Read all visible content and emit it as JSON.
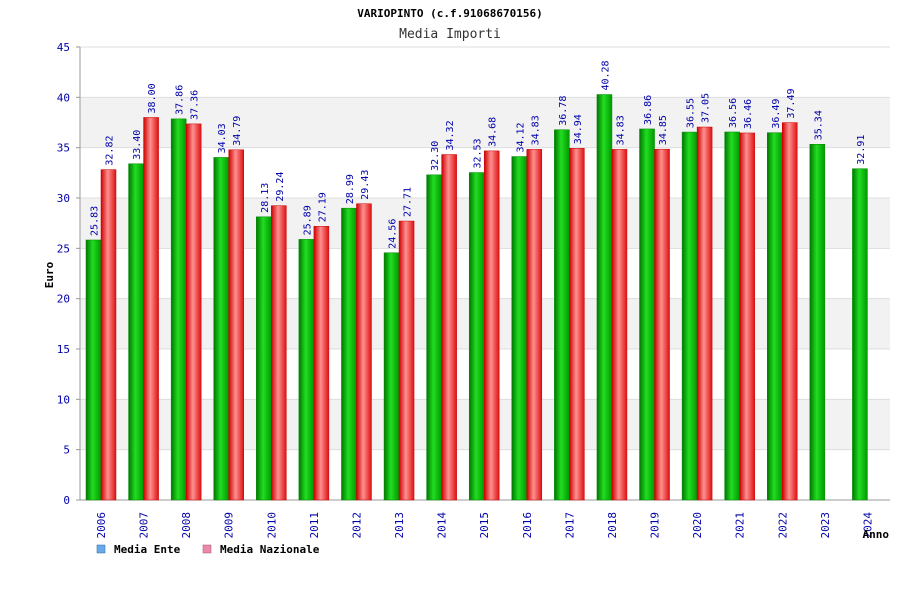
{
  "chart_data": {
    "type": "bar",
    "title": "VARIOPINTO (c.f.91068670156)",
    "subtitle": "Media Importi",
    "ylabel": "Euro",
    "xlabel": "Anno",
    "ylim": [
      0,
      45
    ],
    "yticks": [
      0,
      5,
      10,
      15,
      20,
      25,
      30,
      35,
      40,
      45
    ],
    "categories": [
      "2006",
      "2007",
      "2008",
      "2009",
      "2010",
      "2011",
      "2012",
      "2013",
      "2014",
      "2015",
      "2016",
      "2017",
      "2018",
      "2019",
      "2020",
      "2021",
      "2022",
      "2023",
      "2024"
    ],
    "series": [
      {
        "name": "Media Ente",
        "value_labels": [
          "25.83",
          "33.40",
          "37.86",
          "34.03",
          "28.13",
          "25.89",
          "28.99",
          "24.56",
          "32.30",
          "32.53",
          "34.12",
          "36.78",
          "40.28",
          "36.86",
          "36.55",
          "36.56",
          "36.49",
          "35.34",
          "32.91"
        ],
        "values": [
          25.83,
          33.4,
          37.86,
          34.03,
          28.13,
          25.89,
          28.99,
          24.56,
          32.3,
          32.53,
          34.12,
          36.78,
          40.28,
          36.86,
          36.55,
          36.56,
          36.49,
          35.34,
          32.91
        ]
      },
      {
        "name": "Media Nazionale",
        "value_labels": [
          "32.82",
          "38.00",
          "37.36",
          "34.79",
          "29.24",
          "27.19",
          "29.43",
          "27.71",
          "34.32",
          "34.68",
          "34.83",
          "34.94",
          "34.83",
          "34.85",
          "37.05",
          "36.46",
          "37.49",
          null,
          null
        ],
        "values": [
          32.82,
          38.0,
          37.36,
          34.79,
          29.24,
          27.19,
          29.43,
          27.71,
          34.32,
          34.68,
          34.83,
          34.94,
          34.83,
          34.85,
          37.05,
          36.46,
          37.49,
          null,
          null
        ]
      }
    ],
    "colors": {
      "bar_green_edge": "#008800",
      "bar_green_mid": "#22dd22",
      "bar_red_edge": "#cc0000",
      "bar_red_mid": "#ff9090",
      "legend_ente": "#66aaee",
      "legend_nazionale": "#ee88aa",
      "band": "#f2f2f2",
      "grid": "#dddddd",
      "axis": "#999999"
    },
    "legend_position": "bottom-left",
    "grid": true
  }
}
